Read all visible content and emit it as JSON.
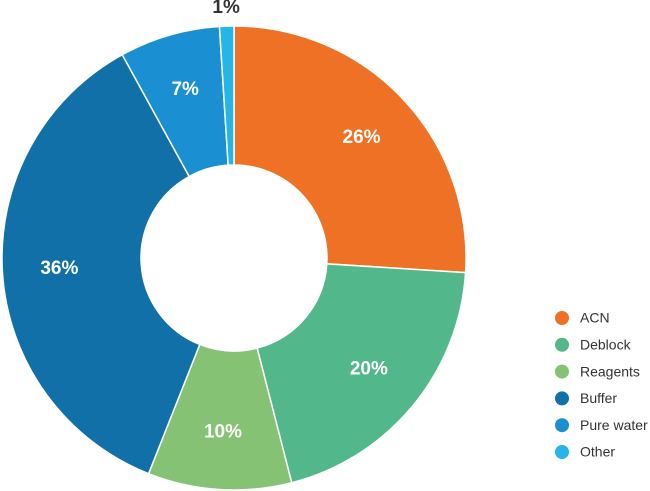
{
  "chart_data": {
    "type": "donut",
    "categories": [
      "ACN",
      "Deblock",
      "Reagents",
      "Buffer",
      "Pure water",
      "Other"
    ],
    "values": [
      26,
      20,
      10,
      36,
      7,
      1
    ],
    "value_labels": [
      "26%",
      "20%",
      "10%",
      "36%",
      "7%",
      "1%"
    ],
    "colors": [
      "#ef7125",
      "#52b78a",
      "#86c273",
      "#1170a8",
      "#1a8fd1",
      "#25b5e6"
    ],
    "legend": "right"
  }
}
